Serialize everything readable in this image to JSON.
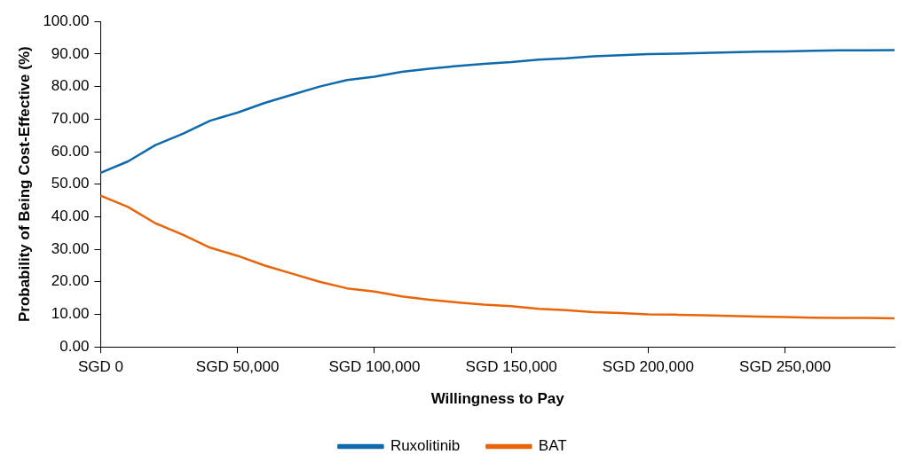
{
  "chart_data": {
    "type": "line",
    "xlabel": "Willingness to Pay",
    "ylabel": "Probability of Being Cost-Effective (%)",
    "categories": [
      "SGD 0",
      null,
      null,
      null,
      null,
      "SGD 50,000",
      null,
      null,
      null,
      null,
      "SGD 100,000",
      null,
      null,
      null,
      null,
      "SGD 150,000",
      null,
      null,
      null,
      null,
      "SGD 200,000",
      null,
      null,
      null,
      null,
      "SGD 250,000",
      null,
      null,
      null,
      null
    ],
    "series": [
      {
        "name": "Ruxolitinib",
        "color": "#0f6aab",
        "values": [
          53.5,
          57,
          62,
          65.5,
          69.5,
          72,
          75,
          77.5,
          80,
          82,
          83,
          84.5,
          85.5,
          86.3,
          87,
          87.5,
          88.3,
          88.7,
          89.3,
          89.6,
          90,
          90.1,
          90.3,
          90.5,
          90.7,
          90.8,
          91,
          91.1,
          91.1,
          91.2
        ]
      },
      {
        "name": "BAT",
        "color": "#e8650a",
        "values": [
          46.5,
          43,
          38,
          34.5,
          30.5,
          28,
          25,
          22.5,
          20,
          18,
          17,
          15.5,
          14.5,
          13.7,
          13,
          12.5,
          11.7,
          11.3,
          10.7,
          10.4,
          10,
          9.9,
          9.7,
          9.5,
          9.3,
          9.2,
          9,
          8.9,
          8.9,
          8.8
        ]
      }
    ],
    "ylim": [
      0,
      100
    ],
    "yticks": [
      {
        "value": 0,
        "label": "0.00"
      },
      {
        "value": 10,
        "label": "10.00"
      },
      {
        "value": 20,
        "label": "20.00"
      },
      {
        "value": 30,
        "label": "30.00"
      },
      {
        "value": 40,
        "label": "40.00"
      },
      {
        "value": 50,
        "label": "50.00"
      },
      {
        "value": 60,
        "label": "60.00"
      },
      {
        "value": 70,
        "label": "70.00"
      },
      {
        "value": 80,
        "label": "80.00"
      },
      {
        "value": 90,
        "label": "90.00"
      },
      {
        "value": 100,
        "label": "100.00"
      }
    ],
    "grid": false,
    "legend": "bottom",
    "marker": "none",
    "line_style": "solid"
  }
}
